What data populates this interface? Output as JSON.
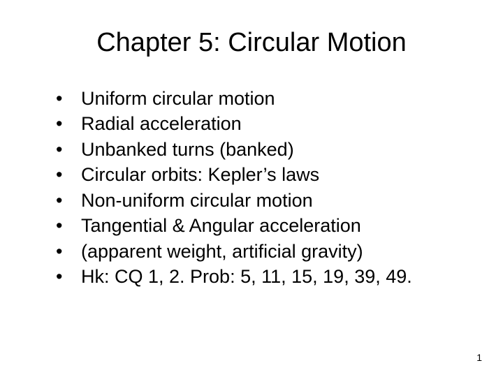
{
  "title": "Chapter 5: Circular Motion",
  "bullets": {
    "b0": "Uniform circular motion",
    "b1": "Radial acceleration",
    "b2": "Unbanked turns (banked)",
    "b3": "Circular orbits: Kepler’s laws",
    "b4": "Non-uniform circular motion",
    "b5": "Tangential & Angular acceleration",
    "b6": "(apparent weight, artificial gravity)",
    "b7": "Hk: CQ 1, 2. Prob: 5, 11, 15, 19, 39, 49."
  },
  "pageNumber": "1"
}
